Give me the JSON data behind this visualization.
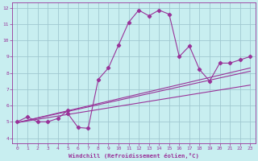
{
  "xlabel": "Windchill (Refroidissement éolien,°C)",
  "background_color": "#c8eef0",
  "grid_color": "#a0c8d0",
  "line_color": "#993399",
  "xlim": [
    -0.5,
    23.5
  ],
  "ylim": [
    3.7,
    12.3
  ],
  "xticks": [
    0,
    1,
    2,
    3,
    4,
    5,
    6,
    7,
    8,
    9,
    10,
    11,
    12,
    13,
    14,
    15,
    16,
    17,
    18,
    19,
    20,
    21,
    22,
    23
  ],
  "yticks": [
    4,
    5,
    6,
    7,
    8,
    9,
    10,
    11,
    12
  ],
  "line1_x": [
    0,
    1,
    2,
    3,
    4,
    5,
    5,
    6,
    7,
    8,
    9,
    10,
    11,
    12,
    13,
    14,
    15,
    16,
    17,
    18,
    19,
    20,
    21,
    22,
    23
  ],
  "line1_y": [
    5.0,
    5.3,
    5.0,
    5.0,
    5.2,
    5.7,
    5.5,
    4.65,
    4.6,
    7.6,
    8.3,
    9.7,
    11.1,
    11.85,
    11.5,
    11.85,
    11.6,
    9.0,
    9.65,
    8.2,
    7.5,
    8.6,
    8.6,
    8.8,
    9.0
  ],
  "line2_x": [
    0,
    23
  ],
  "line2_y": [
    4.95,
    8.3
  ],
  "line3_x": [
    0,
    23
  ],
  "line3_y": [
    4.95,
    7.25
  ],
  "line4_x": [
    0,
    23
  ],
  "line4_y": [
    4.95,
    8.1
  ]
}
